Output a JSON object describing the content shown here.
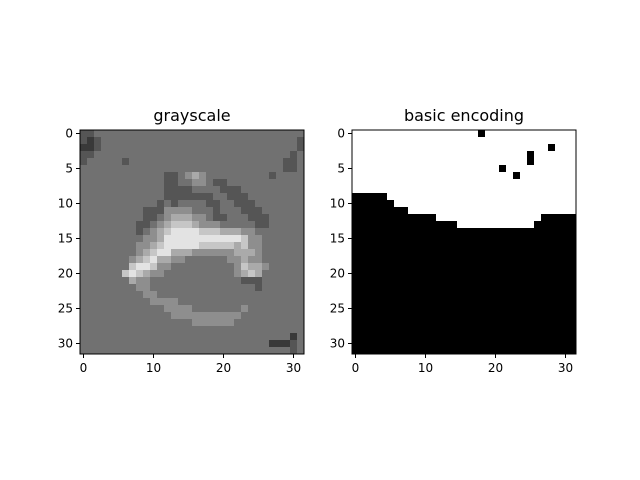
{
  "chart_data": [
    {
      "type": "heatmap",
      "title": "grayscale",
      "colormap": "gray",
      "grid": false,
      "rows": 32,
      "cols": 32,
      "xlim": [
        -0.5,
        31.5
      ],
      "ylim": [
        31.5,
        -0.5
      ],
      "xticks": [
        0,
        10,
        20,
        30
      ],
      "yticks": [
        0,
        5,
        10,
        15,
        20,
        25,
        30
      ],
      "value_range": [
        0,
        9
      ],
      "values": [
        "33444444444444444444444444444444",
        "32344444444444444444444444444443",
        "22344444444444444444444444444443",
        "33444444444444444444444444444434",
        "34444434444444444444444444444334",
        "44444444444444444444444444444334",
        "44444444444433456544444444434444",
        "44444444444433445543344444444444",
        "44444444444433334444333444444444",
        "44444444444433333334433344444444",
        "44444444444343444433443334444444",
        "44444444433355554443444333444444",
        "44444444433456665543344433344444",
        "44444444334567776555444443344444",
        "44444444345678888777666554444444",
        "44444444455688888888888755444444",
        "44444444556788888777776755444444",
        "44444444567886665555556665444444",
        "44444445678665544444455655444444",
        "44444447887554444444445766544444",
        "44444478765544444444445676444444",
        "44444446554444444444444333444444",
        "44444444554444444444444443444444",
        "44444444455444444444444444444444",
        "44444444445555444444444444444444",
        "44444444444455554444444544444444",
        "44444444444445555555555444444444",
        "44444444444444445555554444444444",
        "44444444444444444444444444444444",
        "44444444444444444444444444444424",
        "44444444444444444444444444422234",
        "44444444444444444444444444444434"
      ]
    },
    {
      "type": "heatmap",
      "title": "basic encoding",
      "colormap": "binary",
      "grid": false,
      "rows": 32,
      "cols": 32,
      "xlim": [
        -0.5,
        31.5
      ],
      "ylim": [
        31.5,
        -0.5
      ],
      "xticks": [
        0,
        10,
        20,
        30
      ],
      "yticks": [
        0,
        5,
        10,
        15,
        20,
        25,
        30
      ],
      "value_range": [
        0,
        1
      ],
      "values": [
        "00000000000000000010000000000000",
        "00000000000000000000000000000000",
        "00000000000000000000000000001000",
        "00000000000000000000000001000000",
        "00000000000000000000000001000000",
        "00000000000000000000010000000000",
        "00000000000000000000000100000000",
        "00000000000000000000000000000000",
        "00000000000000000000000000000000",
        "11111000000000000000000000000000",
        "11111100000000000000000000000000",
        "11111111000000000000000000000000",
        "11111111111100000000000000011111",
        "11111111111111100000000000111111",
        "11111111111111111111111111111111",
        "11111111111111111111111111111111",
        "11111111111111111111111111111111",
        "11111111111111111111111111111111",
        "11111111111111111111111111111111",
        "11111111111111111111111111111111",
        "11111111111111111111111111111111",
        "11111111111111111111111111111111",
        "11111111111111111111111111111111",
        "11111111111111111111111111111111",
        "11111111111111111111111111111111",
        "11111111111111111111111111111111",
        "11111111111111111111111111111111",
        "11111111111111111111111111111111",
        "11111111111111111111111111111111",
        "11111111111111111111111111111111",
        "11111111111111111111111111111111",
        "11111111111111111111111111111111"
      ]
    }
  ]
}
